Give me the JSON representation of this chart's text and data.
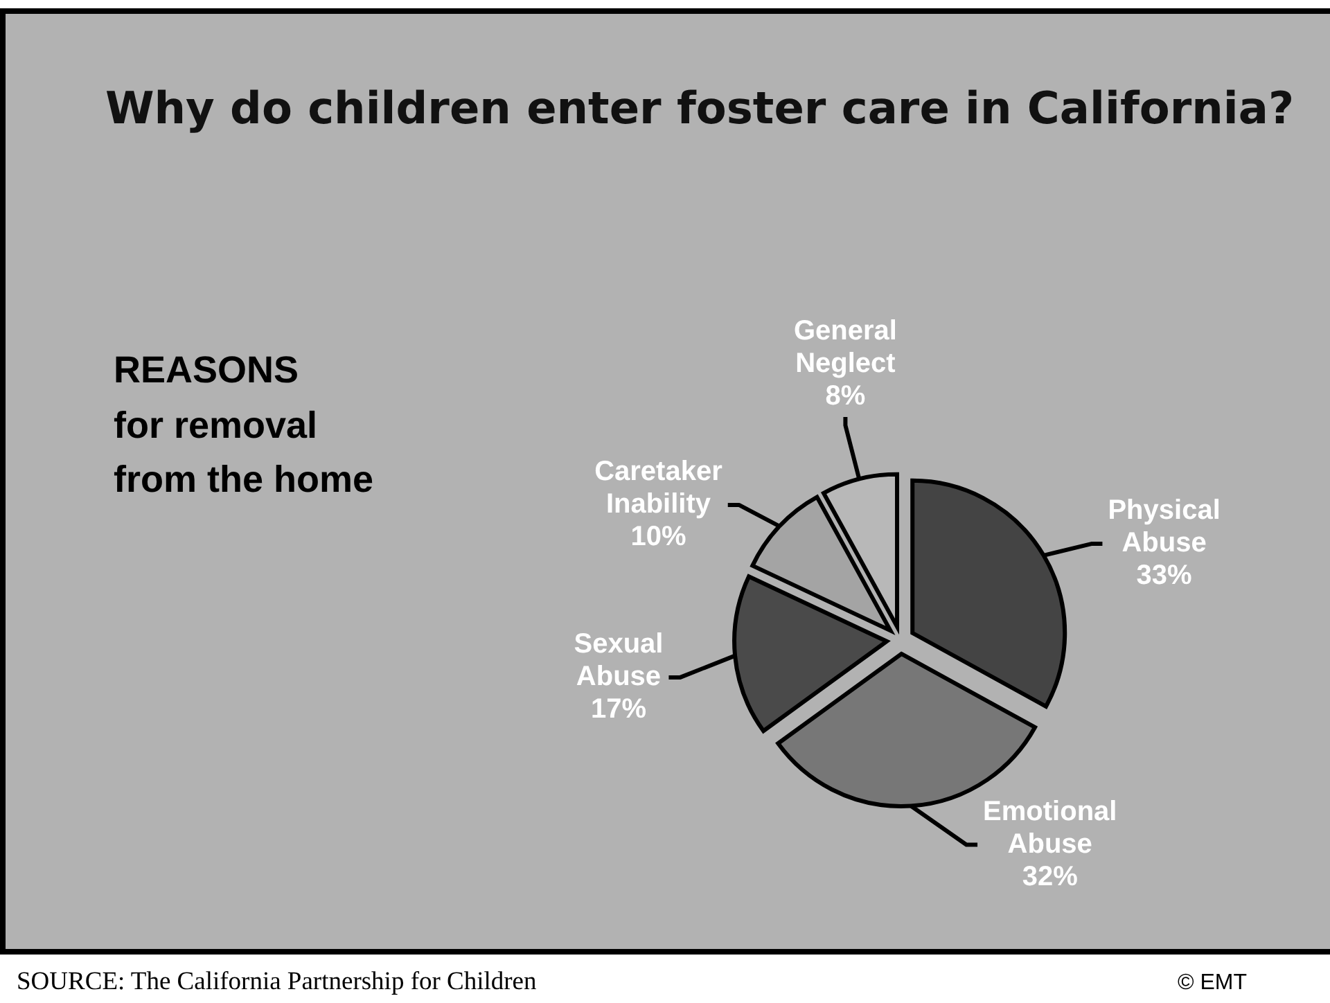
{
  "chart_data": {
    "type": "pie",
    "title": "Why do children enter foster care in California?",
    "subtitle": "REASONS\nfor removal\nfrom the home",
    "categories": [
      "Physical Abuse",
      "Emotional Abuse",
      "Sexual Abuse",
      "Caretaker Inability",
      "General Neglect"
    ],
    "values": [
      33,
      32,
      17,
      10,
      8
    ],
    "value_labels": [
      "33%",
      "32%",
      "17%",
      "10%",
      "8%"
    ],
    "colors": [
      "#444444",
      "#777777",
      "#4a4a4a",
      "#a4a4a4",
      "#b8b8b8"
    ],
    "legend": false,
    "annotations": [
      "SOURCE: The California Partnership for Children",
      "© EMT"
    ]
  }
}
